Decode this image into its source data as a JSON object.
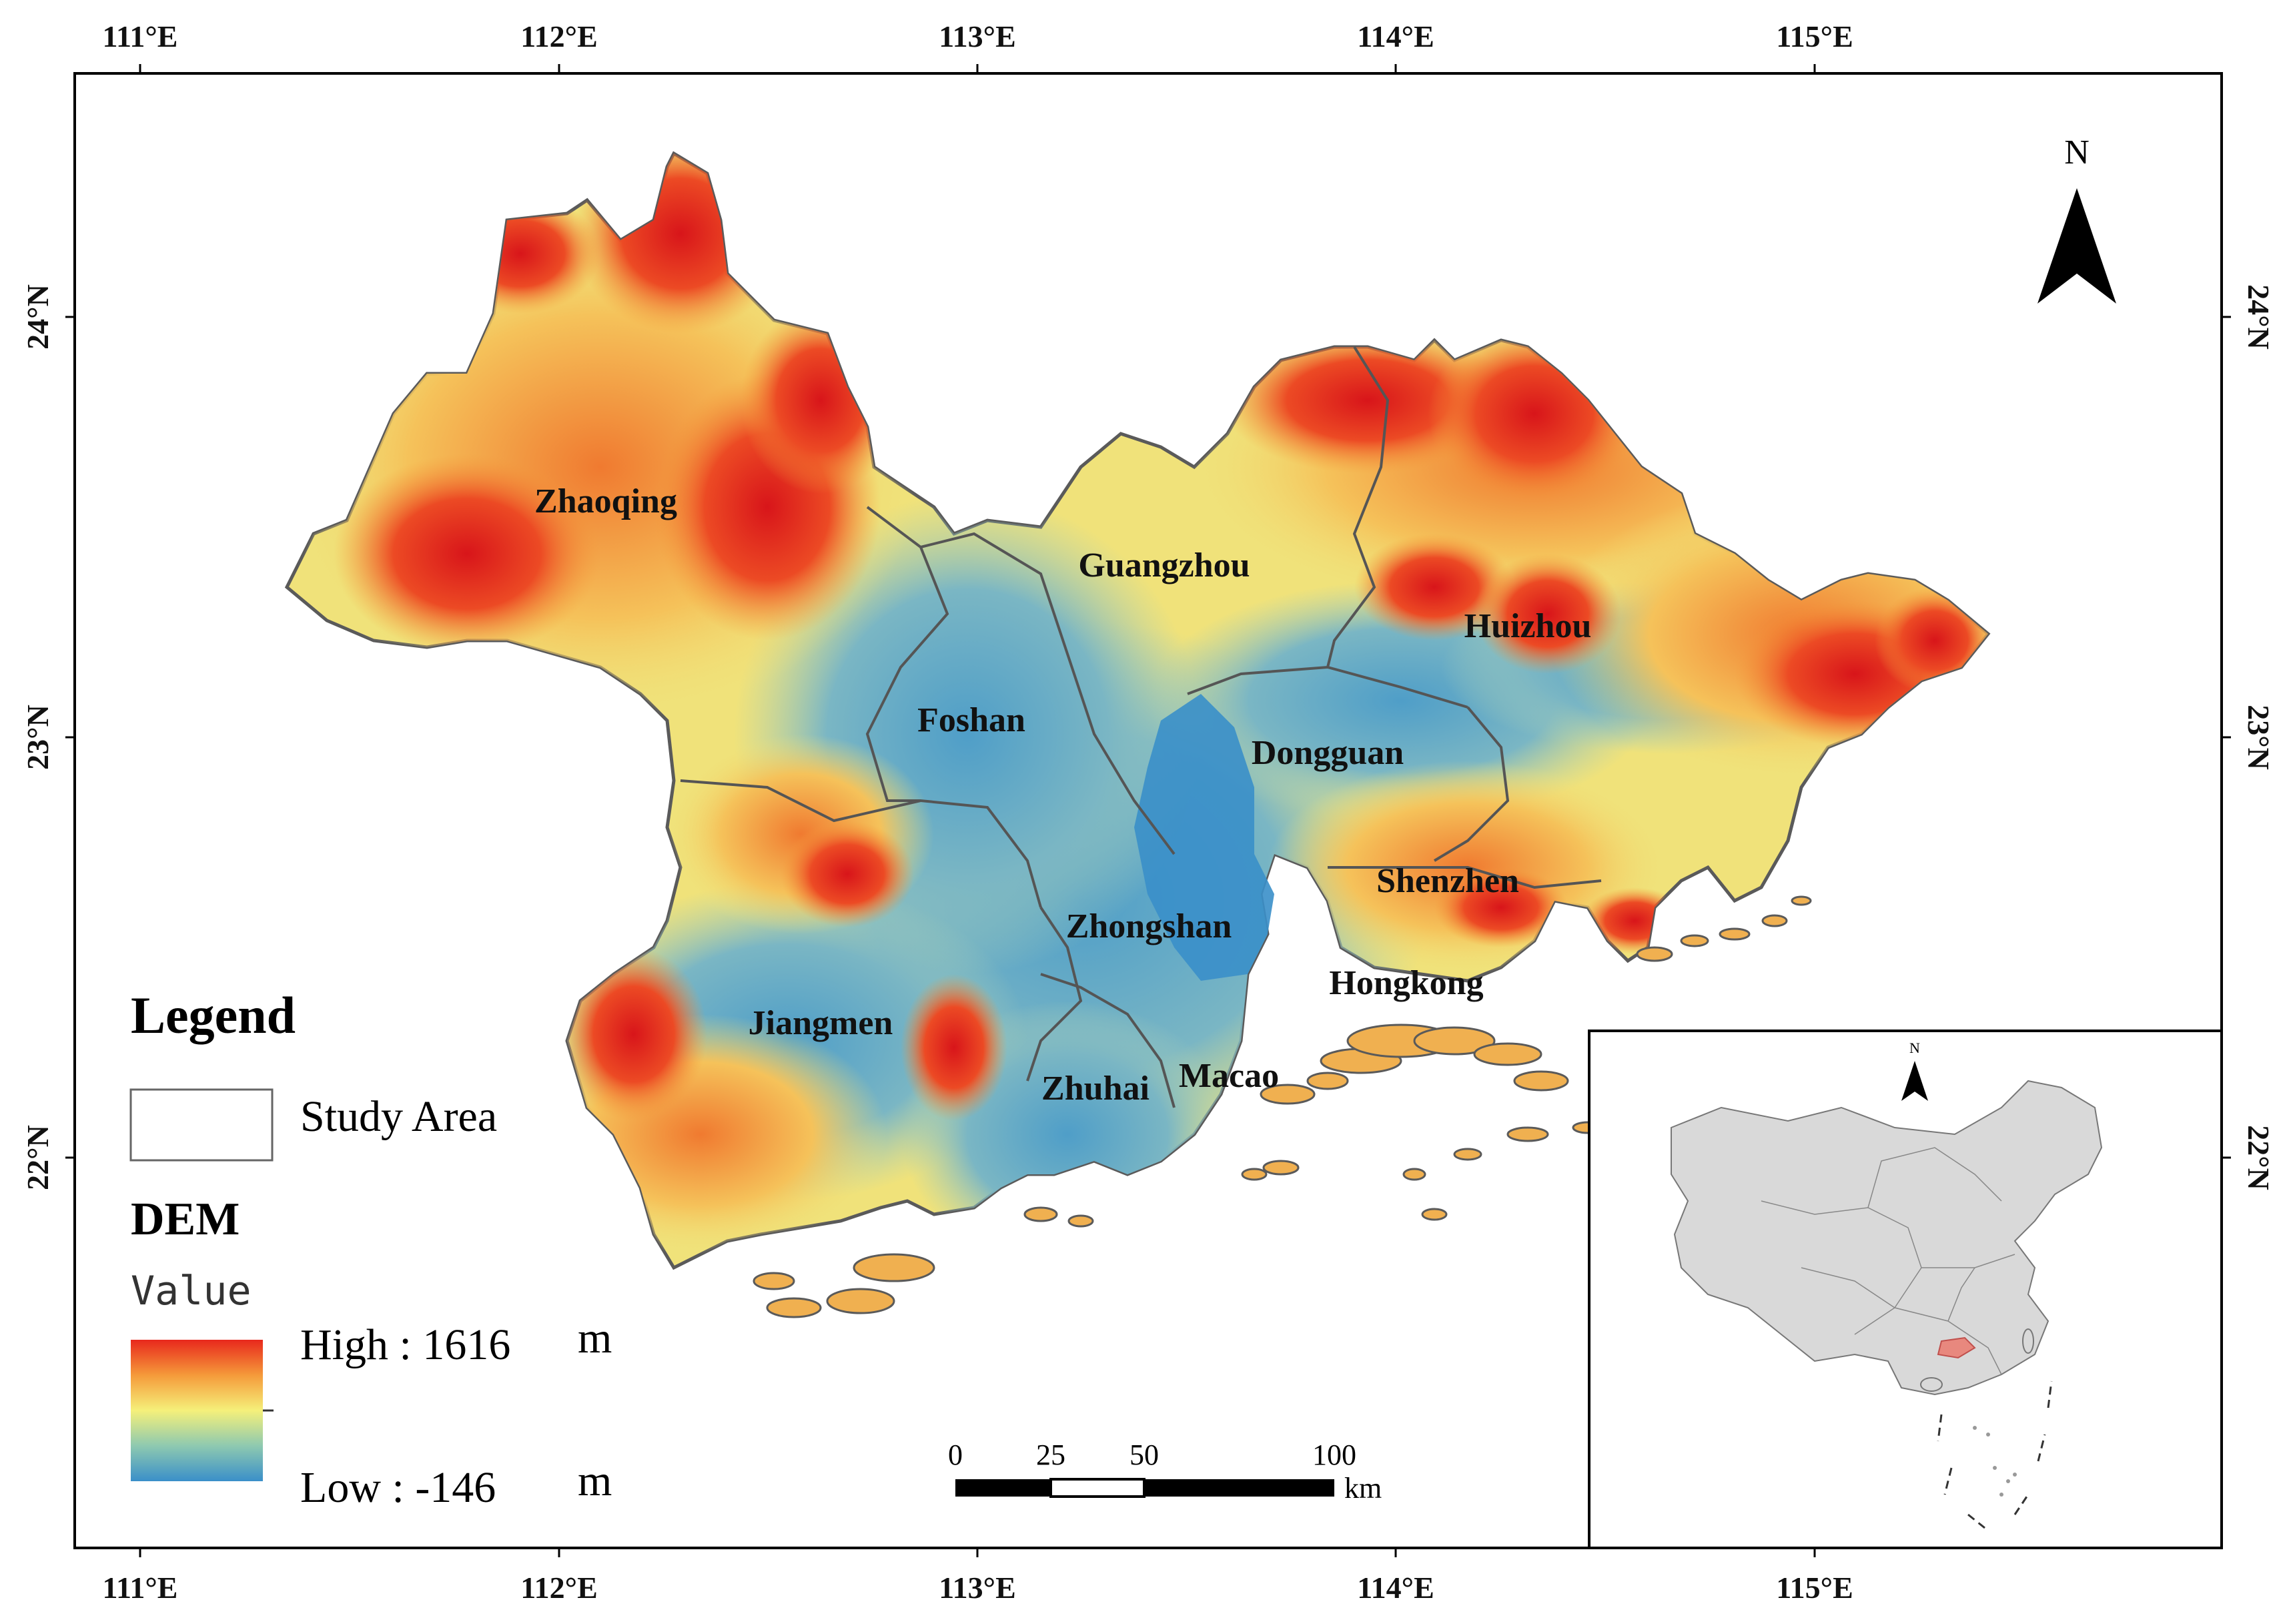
{
  "map": {
    "longitude_ticks": [
      "111°E",
      "112°E",
      "113°E",
      "114°E",
      "115°E"
    ],
    "latitude_ticks": [
      "24°N",
      "23°N",
      "22°N"
    ],
    "cities": [
      {
        "name": "Zhaoqing"
      },
      {
        "name": "Guangzhou"
      },
      {
        "name": "Huizhou"
      },
      {
        "name": "Foshan"
      },
      {
        "name": "Dongguan"
      },
      {
        "name": "Shenzhen"
      },
      {
        "name": "Zhongshan"
      },
      {
        "name": "Hongkong"
      },
      {
        "name": "Jiangmen"
      },
      {
        "name": "Zhuhai"
      },
      {
        "name": "Macao"
      }
    ],
    "north_label": "N"
  },
  "legend": {
    "title": "Legend",
    "study_area_label": "Study Area",
    "dem_title": "DEM",
    "value_label": "Value",
    "high_label": "High : 1616",
    "low_label": "Low : -146",
    "unit": "m",
    "colors": {
      "high": "#e8281c",
      "mid": "#f5f07a",
      "low": "#3a8fc9"
    }
  },
  "scale_bar": {
    "ticks": [
      "0",
      "25",
      "50",
      "100"
    ],
    "unit": "km"
  },
  "inset": {
    "north_label": "N",
    "country_fill": "#d9d9d9",
    "highlight_fill": "#e8887e"
  },
  "colors": {
    "water": "#3a8fc9",
    "lowland": "#6fb0c8",
    "mid": "#f0e27a",
    "upland": "#f5a040",
    "mountain": "#e8281c",
    "boundary": "#555555"
  }
}
